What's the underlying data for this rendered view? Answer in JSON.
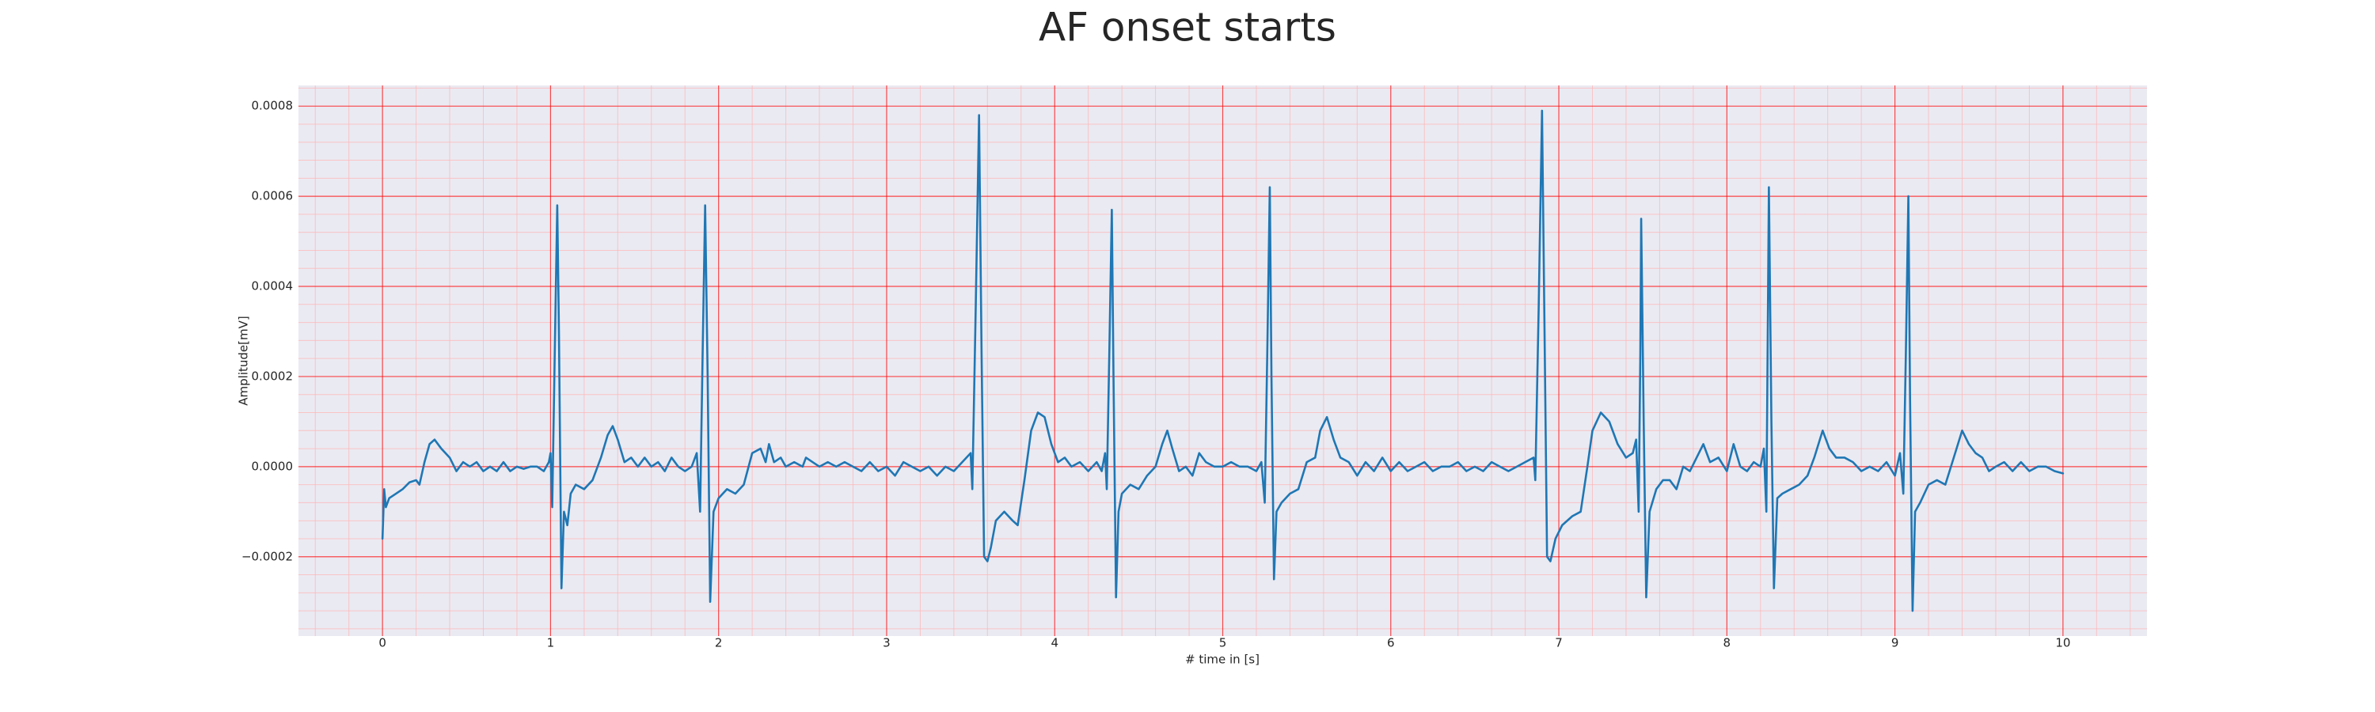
{
  "chart_data": {
    "type": "line",
    "title": "AF onset starts",
    "xlabel": "# time in [s]",
    "ylabel": "Amplitude[mV]",
    "color": "#1f77b4",
    "background": "#eaeaf2",
    "grid": true,
    "grid_color": "#ff0000",
    "minor_grid_color": "#ffb3b3",
    "xlim": [
      -0.5,
      10.5
    ],
    "ylim": [
      -0.000376,
      0.000846
    ],
    "xticks": [
      0,
      1,
      2,
      3,
      4,
      5,
      6,
      7,
      8,
      9,
      10
    ],
    "yticks": [
      {
        "value": -0.0002,
        "label": "−0.0002"
      },
      {
        "value": 0,
        "label": "0.0000"
      },
      0.0002,
      0.0004,
      0.0006,
      0.0008
    ],
    "xminor": [
      -0.4,
      -0.2,
      0.2,
      0.4,
      0.6,
      0.8,
      1.2,
      1.4,
      1.6,
      1.8,
      2.2,
      2.4,
      2.6,
      2.8,
      3.2,
      3.4,
      3.6,
      3.8,
      4.2,
      4.4,
      4.6,
      4.8,
      5.2,
      5.4,
      5.6,
      5.8,
      6.2,
      6.4,
      6.6,
      6.8,
      7.2,
      7.4,
      7.6,
      7.8,
      8.2,
      8.4,
      8.6,
      8.8,
      9.2,
      9.4,
      9.6,
      9.8,
      10.2,
      10.4
    ],
    "yminor": [
      -0.00036,
      -0.00032,
      -0.00028,
      -0.00024,
      -0.00016,
      -0.00012,
      -8e-05,
      -4e-05,
      4e-05,
      8e-05,
      0.00012,
      0.00016,
      0.00024,
      0.00028,
      0.00032,
      0.00036,
      0.00044,
      0.00048,
      0.00052,
      0.00056,
      0.00064,
      0.00068,
      0.00072,
      0.00076,
      0.00084
    ],
    "x": [
      0,
      0.01,
      0.02,
      0.04,
      0.08,
      0.12,
      0.16,
      0.2,
      0.22,
      0.25,
      0.28,
      0.31,
      0.35,
      0.4,
      0.44,
      0.48,
      0.52,
      0.56,
      0.6,
      0.64,
      0.68,
      0.72,
      0.76,
      0.8,
      0.84,
      0.88,
      0.92,
      0.96,
      0.99,
      1.0,
      1.01,
      1.025,
      1.04,
      1.05,
      1.065,
      1.08,
      1.1,
      1.12,
      1.15,
      1.2,
      1.25,
      1.3,
      1.34,
      1.37,
      1.4,
      1.44,
      1.48,
      1.52,
      1.56,
      1.6,
      1.64,
      1.68,
      1.72,
      1.76,
      1.8,
      1.84,
      1.87,
      1.89,
      1.905,
      1.92,
      1.935,
      1.95,
      1.97,
      2.0,
      2.05,
      2.1,
      2.15,
      2.2,
      2.25,
      2.28,
      2.3,
      2.33,
      2.37,
      2.4,
      2.45,
      2.5,
      2.52,
      2.56,
      2.6,
      2.65,
      2.7,
      2.75,
      2.8,
      2.85,
      2.9,
      2.95,
      3.0,
      3.05,
      3.1,
      3.15,
      3.2,
      3.25,
      3.3,
      3.35,
      3.4,
      3.45,
      3.5,
      3.51,
      3.53,
      3.55,
      3.565,
      3.58,
      3.6,
      3.62,
      3.65,
      3.7,
      3.75,
      3.78,
      3.82,
      3.86,
      3.9,
      3.94,
      3.98,
      4.02,
      4.06,
      4.1,
      4.15,
      4.2,
      4.25,
      4.28,
      4.3,
      4.31,
      4.325,
      4.34,
      4.35,
      4.365,
      4.38,
      4.4,
      4.45,
      4.5,
      4.55,
      4.6,
      4.64,
      4.67,
      4.7,
      4.74,
      4.78,
      4.82,
      4.86,
      4.9,
      4.95,
      5.0,
      5.05,
      5.1,
      5.15,
      5.2,
      5.23,
      5.25,
      5.265,
      5.28,
      5.29,
      5.305,
      5.32,
      5.35,
      5.4,
      5.45,
      5.5,
      5.55,
      5.58,
      5.62,
      5.66,
      5.7,
      5.75,
      5.8,
      5.85,
      5.9,
      5.95,
      6.0,
      6.05,
      6.1,
      6.15,
      6.2,
      6.25,
      6.3,
      6.35,
      6.4,
      6.45,
      6.5,
      6.55,
      6.6,
      6.65,
      6.7,
      6.75,
      6.8,
      6.85,
      6.86,
      6.88,
      6.9,
      6.915,
      6.93,
      6.95,
      6.98,
      7.02,
      7.08,
      7.13,
      7.17,
      7.2,
      7.25,
      7.3,
      7.35,
      7.4,
      7.44,
      7.46,
      7.475,
      7.485,
      7.49,
      7.505,
      7.52,
      7.54,
      7.58,
      7.62,
      7.66,
      7.7,
      7.74,
      7.78,
      7.82,
      7.86,
      7.9,
      7.95,
      8.0,
      8.04,
      8.08,
      8.12,
      8.16,
      8.2,
      8.22,
      8.235,
      8.25,
      8.265,
      8.28,
      8.3,
      8.33,
      8.38,
      8.43,
      8.48,
      8.52,
      8.57,
      8.61,
      8.65,
      8.7,
      8.75,
      8.8,
      8.85,
      8.9,
      8.95,
      9.0,
      9.03,
      9.05,
      9.065,
      9.08,
      9.09,
      9.105,
      9.12,
      9.15,
      9.2,
      9.25,
      9.3,
      9.35,
      9.4,
      9.44,
      9.48,
      9.52,
      9.56,
      9.6,
      9.65,
      9.7,
      9.75,
      9.8,
      9.85,
      9.9,
      9.95,
      10.0
    ],
    "values": [
      -0.00016,
      -5e-05,
      -9e-05,
      -7e-05,
      -6e-05,
      -5e-05,
      -3.5e-05,
      -3e-05,
      -4e-05,
      1e-05,
      5e-05,
      6e-05,
      4e-05,
      2e-05,
      -1e-05,
      1e-05,
      0,
      1e-05,
      -1e-05,
      0,
      -1e-05,
      1e-05,
      -1e-05,
      0,
      -5e-06,
      0,
      0,
      -1e-05,
      1e-05,
      3e-05,
      -9e-05,
      0.00025,
      0.00058,
      0.0003,
      -0.00027,
      -0.0001,
      -0.00013,
      -6e-05,
      -4e-05,
      -5e-05,
      -3e-05,
      2e-05,
      7e-05,
      9e-05,
      6e-05,
      1e-05,
      2e-05,
      0,
      2e-05,
      0,
      1e-05,
      -1e-05,
      2e-05,
      0,
      -1e-05,
      0,
      3e-05,
      -0.0001,
      0.00025,
      0.00058,
      0.0002,
      -0.0003,
      -0.0001,
      -7e-05,
      -5e-05,
      -6e-05,
      -4e-05,
      3e-05,
      4e-05,
      1e-05,
      5e-05,
      1e-05,
      2e-05,
      0,
      1e-05,
      0,
      2e-05,
      1e-05,
      0,
      1e-05,
      0,
      1e-05,
      0,
      -1e-05,
      1e-05,
      -1e-05,
      0,
      -2e-05,
      1e-05,
      0,
      -1e-05,
      0,
      -2e-05,
      0,
      -1e-05,
      1e-05,
      3e-05,
      -5e-05,
      0.00035,
      0.00078,
      0.00025,
      -0.0002,
      -0.00021,
      -0.00018,
      -0.00012,
      -0.0001,
      -0.00012,
      -0.00013,
      -3e-05,
      8e-05,
      0.00012,
      0.00011,
      5e-05,
      1e-05,
      2e-05,
      0,
      1e-05,
      -1e-05,
      1e-05,
      -1e-05,
      3e-05,
      -5e-05,
      0.00025,
      0.00057,
      0.0002,
      -0.00029,
      -0.0001,
      -6e-05,
      -4e-05,
      -5e-05,
      -2e-05,
      0,
      5e-05,
      8e-05,
      4e-05,
      -1e-05,
      0,
      -2e-05,
      3e-05,
      1e-05,
      0,
      0,
      1e-05,
      0,
      0,
      -1e-05,
      1e-05,
      -8e-05,
      0.00025,
      0.00062,
      0.0002,
      -0.00025,
      -0.0001,
      -8e-05,
      -6e-05,
      -5e-05,
      1e-05,
      2e-05,
      8e-05,
      0.00011,
      6e-05,
      2e-05,
      1e-05,
      -2e-05,
      1e-05,
      -1e-05,
      2e-05,
      -1e-05,
      1e-05,
      -1e-05,
      0,
      1e-05,
      -1e-05,
      0,
      0,
      1e-05,
      -1e-05,
      0,
      -1e-05,
      1e-05,
      0,
      -1e-05,
      0,
      1e-05,
      2e-05,
      -3e-05,
      0.00035,
      0.00079,
      0.0003,
      -0.0002,
      -0.00021,
      -0.00016,
      -0.00013,
      -0.00011,
      -0.0001,
      0,
      8e-05,
      0.00012,
      0.0001,
      5e-05,
      2e-05,
      3e-05,
      6e-05,
      -0.0001,
      0.00025,
      0.00055,
      0.0001,
      -0.00029,
      -0.0001,
      -5e-05,
      -3e-05,
      -3e-05,
      -5e-05,
      0,
      -1e-05,
      2e-05,
      5e-05,
      1e-05,
      2e-05,
      -1e-05,
      5e-05,
      0,
      -1e-05,
      1e-05,
      0,
      4e-05,
      -0.0001,
      0.00062,
      0.0001,
      -0.00027,
      -7e-05,
      -6e-05,
      -5e-05,
      -4e-05,
      -2e-05,
      2e-05,
      8e-05,
      4e-05,
      2e-05,
      2e-05,
      1e-05,
      -1e-05,
      0,
      -1e-05,
      1e-05,
      -2e-05,
      3e-05,
      -6e-05,
      0.00025,
      0.0006,
      0.00015,
      -0.00032,
      -0.0001,
      -8e-05,
      -4e-05,
      -3e-05,
      -4e-05,
      2e-05,
      8e-05,
      5e-05,
      3e-05,
      2e-05,
      -1e-05,
      0,
      1e-05,
      -1e-05,
      1e-05,
      -1e-05,
      0,
      0,
      -1e-05,
      -1.5e-05
    ]
  }
}
